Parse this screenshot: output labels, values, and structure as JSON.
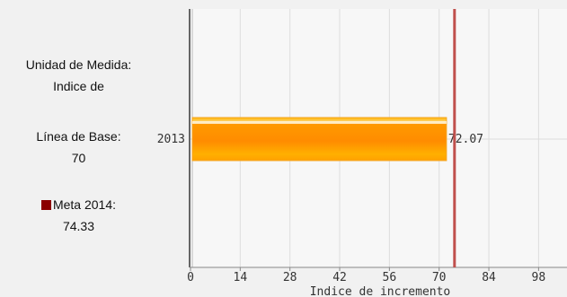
{
  "info": {
    "unidad_label": "Unidad de Medida:",
    "unidad_value": "Indice de",
    "linea_base_label": "Línea de Base:",
    "linea_base_value": "70",
    "meta_label": "Meta 2014:",
    "meta_value": "74.33",
    "meta_color": "#8b0000"
  },
  "chart_data": {
    "type": "bar",
    "orientation": "horizontal",
    "categories": [
      "2013"
    ],
    "values": [
      72.07
    ],
    "value_labels": [
      "72.07"
    ],
    "target_line": 74.33,
    "xlabel": "Indice de incremento",
    "ylabel": "",
    "xlim": [
      0,
      106
    ],
    "xticks": [
      0,
      14,
      28,
      42,
      56,
      70,
      84,
      98
    ],
    "grid": true,
    "bar_color": "#ff9900",
    "target_color": "#c0504d"
  }
}
